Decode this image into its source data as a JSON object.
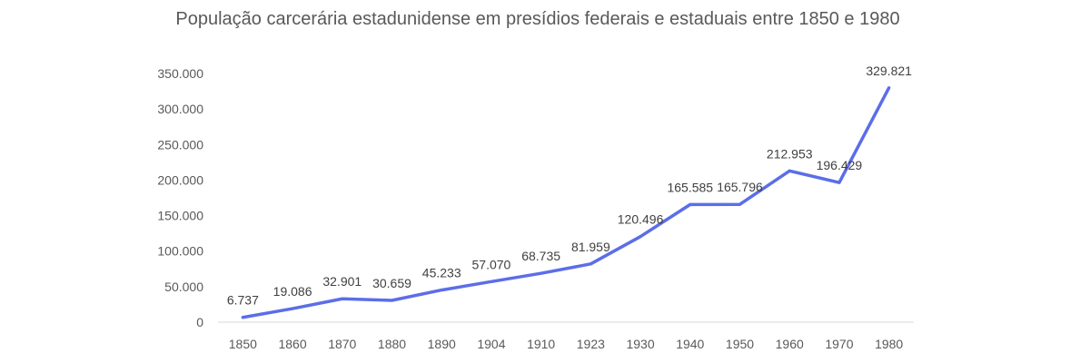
{
  "chart_data": {
    "type": "line",
    "title": "População carcerária estadunidense em presídios federais e estaduais entre 1850 e 1980",
    "xlabel": "",
    "ylabel": "",
    "categories": [
      "1850",
      "1860",
      "1870",
      "1880",
      "1890",
      "1904",
      "1910",
      "1923",
      "1930",
      "1940",
      "1950",
      "1960",
      "1970",
      "1980"
    ],
    "series": [
      {
        "values": [
          6737,
          19086,
          32901,
          30659,
          45233,
          57070,
          68735,
          81959,
          120496,
          165585,
          165796,
          212953,
          196429,
          329821
        ],
        "labels": [
          "6.737",
          "19.086",
          "32.901",
          "30.659",
          "45.233",
          "57.070",
          "68.735",
          "81.959",
          "120.496",
          "165.585",
          "165.796",
          "212.953",
          "196.429",
          "329.821"
        ]
      }
    ],
    "yticks": [
      "0",
      "50.000",
      "100.000",
      "150.000",
      "200.000",
      "250.000",
      "300.000",
      "350.000"
    ],
    "ylim": [
      0,
      350000
    ],
    "grid": false,
    "legend": "none",
    "line_color": "#5B6EE8",
    "axis_color": "#D9D9D9"
  }
}
